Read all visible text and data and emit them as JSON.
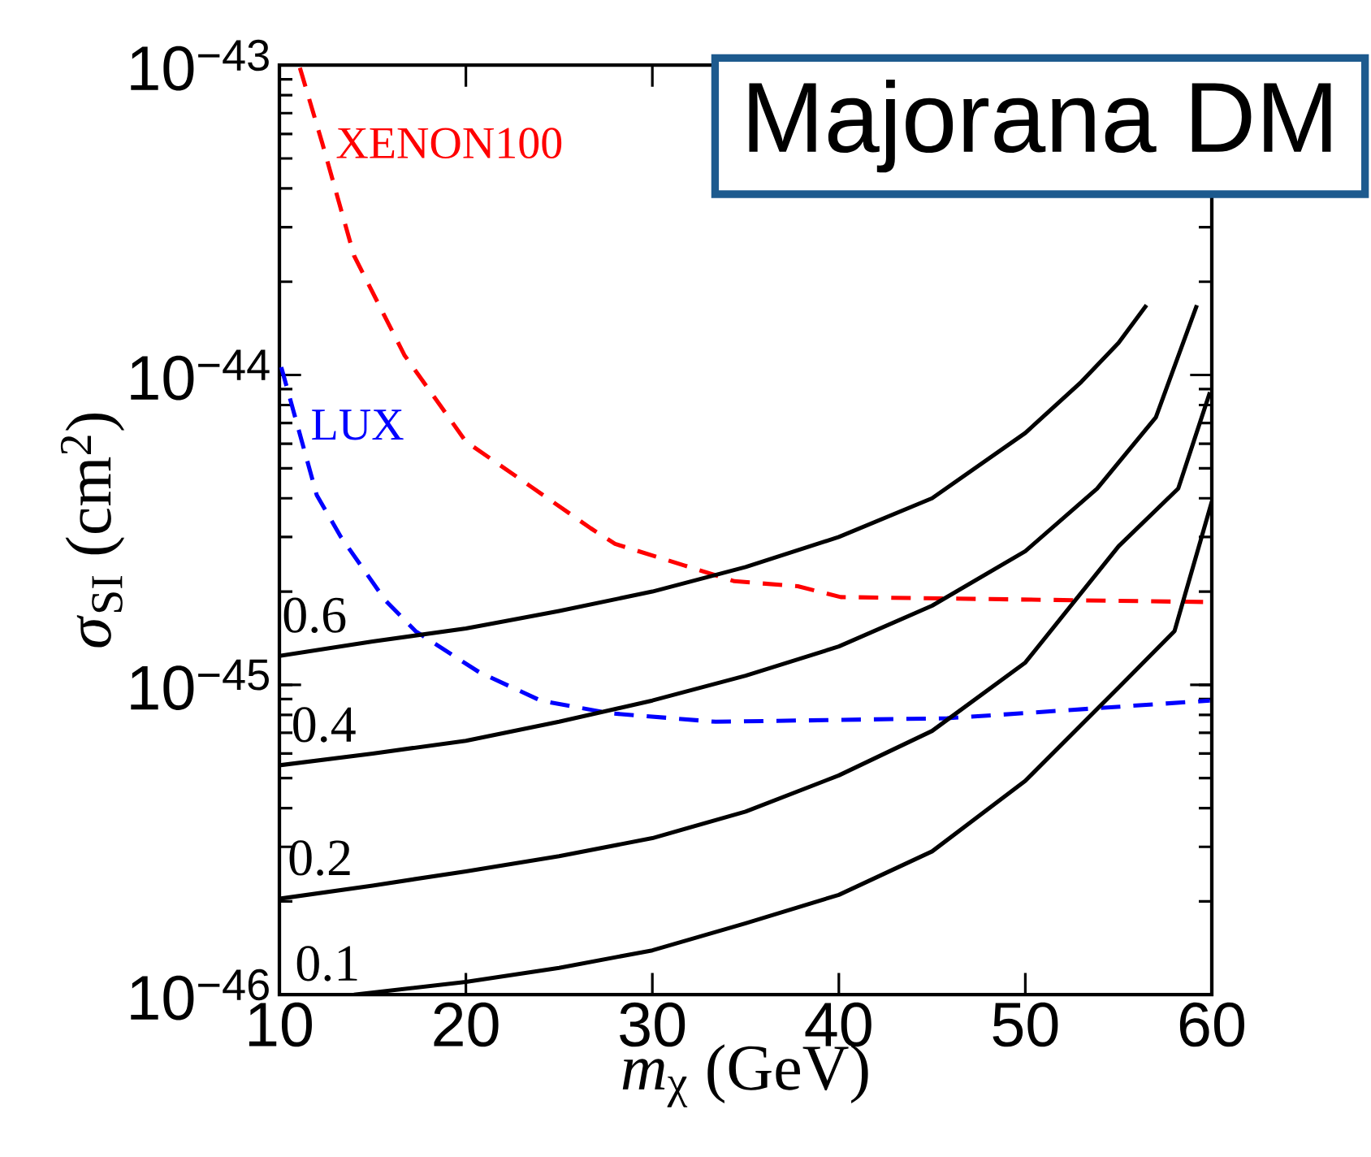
{
  "chart_data": {
    "type": "line",
    "log": "y",
    "xlabel": "*m*$_{χ}$ (GeV)",
    "ylabel": "*σ*$_{SI}$ (cm$^{2}$)",
    "xlim": [
      10,
      60
    ],
    "ylim": [
      1e-46,
      1e-43
    ],
    "xticks": [
      10,
      20,
      30,
      40,
      50,
      60
    ],
    "yticks": [
      {
        "value": 1e-46,
        "label": "10$^{−46}$"
      },
      {
        "value": 1e-45,
        "label": "10$^{−45}$"
      },
      {
        "value": 1e-44,
        "label": "10$^{−44}$"
      },
      {
        "value": 1e-43,
        "label": "10$^{−43}$"
      }
    ],
    "annotations": [
      "Majorana DM",
      {
        "text": "0.6",
        "x": 13.3,
        "y": 1.33e-45
      },
      {
        "text": "0.4",
        "x": 13.8,
        "y": 5.9e-46
      },
      {
        "text": "0.2",
        "x": 13.6,
        "y": 2.19e-46
      },
      {
        "text": "0.1",
        "x": 14,
        "y": 1e-46
      }
    ],
    "series": [
      {
        "name": "XENON100",
        "color": "#ff0000",
        "line_style": "dashed",
        "x": [
          11.1,
          12.3,
          14,
          16.7,
          20,
          23.4,
          26.7,
          28,
          31.7,
          34.4,
          37.8,
          40.1,
          59.9
        ],
        "values": [
          9.8e-44,
          5.6e-44,
          2.43e-44,
          1.16e-44,
          6.1e-45,
          4.4e-45,
          3.2e-45,
          2.85e-45,
          2.43e-45,
          2.16e-45,
          2.08e-45,
          1.92e-45,
          1.85e-45
        ]
      },
      {
        "name": "LUX",
        "color": "#0000ff",
        "line_style": "dashed",
        "x": [
          10.1,
          10.96,
          12.0,
          13.3,
          15.66,
          17.3,
          20.7,
          24,
          27.7,
          33.4,
          45.8,
          52.5,
          59.9
        ],
        "values": [
          1.06e-44,
          6.9e-45,
          4.1e-45,
          3e-45,
          1.88e-45,
          1.49e-45,
          1.1e-45,
          8.9e-46,
          8.1e-46,
          7.6e-46,
          7.8e-46,
          8.3e-46,
          8.9e-46
        ]
      },
      {
        "color": "#000000",
        "line_style": "solid",
        "x": [
          10,
          15,
          20,
          25,
          30,
          35,
          40,
          45,
          50,
          53,
          55,
          56.5
        ],
        "values": [
          1.24e-45,
          1.38e-45,
          1.52e-45,
          1.73e-45,
          2e-45,
          2.4e-45,
          3e-45,
          4e-45,
          6.5e-45,
          9.5e-45,
          1.27e-44,
          1.68e-44
        ]
      },
      {
        "color": "#000000",
        "line_style": "solid",
        "x": [
          10,
          15,
          20,
          25,
          30,
          35,
          40,
          45,
          50,
          53.85,
          57,
          59.2
        ],
        "values": [
          5.5e-46,
          6e-46,
          6.6e-46,
          7.6e-46,
          8.9e-46,
          1.07e-45,
          1.33e-45,
          1.8e-45,
          2.7e-45,
          4.3e-45,
          7.3e-45,
          1.68e-44
        ]
      },
      {
        "color": "#000000",
        "line_style": "solid",
        "x": [
          10,
          15,
          20,
          25,
          30,
          35,
          40,
          45,
          50,
          55,
          58.2,
          59.9
        ],
        "values": [
          2.04e-46,
          2.25e-46,
          2.5e-46,
          2.8e-46,
          3.2e-46,
          3.9e-46,
          5.1e-46,
          7.1e-46,
          1.18e-45,
          2.8e-45,
          4.3e-45,
          8.8e-45
        ]
      },
      {
        "color": "#000000",
        "line_style": "solid",
        "x": [
          14,
          20,
          25,
          30,
          35,
          40,
          45,
          50,
          55,
          58,
          60
        ],
        "values": [
          1e-46,
          1.1e-46,
          1.22e-46,
          1.39e-46,
          1.7e-46,
          2.1e-46,
          2.9e-46,
          4.9e-46,
          9.8e-46,
          1.49e-45,
          3.9e-45
        ]
      }
    ]
  }
}
